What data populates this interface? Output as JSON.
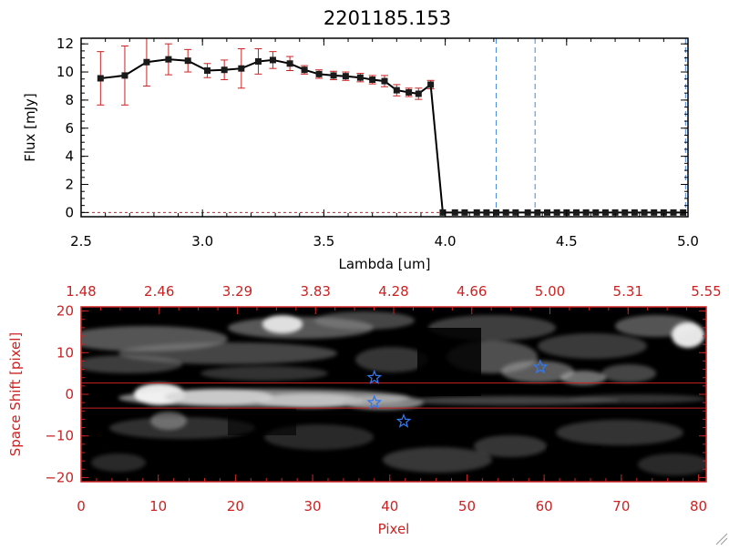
{
  "title": "2201185.153",
  "colors": {
    "data": "#000000",
    "errorbar": "#cc2222",
    "marker": "#1a1a1a",
    "vline": "#4488dd",
    "panel2_axis": "#cc2222",
    "trace_lines": "#cc2222",
    "star": "#3377ee"
  },
  "chart_data": [
    {
      "type": "line",
      "title": "2201185.153",
      "xlabel": "Lambda [um]",
      "ylabel": "Flux [mJy]",
      "xlim": [
        2.5,
        5.0
      ],
      "ylim": [
        -0.3,
        12.4
      ],
      "x_ticks": [
        2.5,
        3.0,
        3.5,
        4.0,
        4.5,
        5.0
      ],
      "x_tick_labels": [
        "2.5",
        "3.0",
        "3.5",
        "4.0",
        "4.5",
        "5.0"
      ],
      "y_ticks": [
        0,
        2,
        4,
        6,
        8,
        10,
        12
      ],
      "y_tick_labels": [
        "0",
        "2",
        "4",
        "6",
        "8",
        "10",
        "12"
      ],
      "series": [
        {
          "x": [
            2.58,
            2.68,
            2.77,
            2.86,
            2.94,
            3.02,
            3.09,
            3.16,
            3.23,
            3.29,
            3.36,
            3.42,
            3.48,
            3.54,
            3.59,
            3.65,
            3.7,
            3.75,
            3.8,
            3.85,
            3.89,
            3.94,
            3.99,
            4.04,
            4.08,
            4.13,
            4.17,
            4.21,
            4.25,
            4.29,
            4.34,
            4.38,
            4.42,
            4.46,
            4.5,
            4.54,
            4.58,
            4.62,
            4.66,
            4.7,
            4.74,
            4.78,
            4.82,
            4.86,
            4.9,
            4.94,
            4.98
          ],
          "y": [
            9.55,
            9.75,
            10.7,
            10.9,
            10.8,
            10.1,
            10.15,
            10.25,
            10.75,
            10.85,
            10.6,
            10.15,
            9.85,
            9.75,
            9.7,
            9.6,
            9.45,
            9.35,
            8.7,
            8.55,
            8.45,
            9.1,
            0,
            0,
            0,
            0,
            0,
            0,
            0,
            0,
            0,
            0,
            0,
            0,
            0,
            0,
            0,
            0,
            0,
            0,
            0,
            0,
            0,
            0,
            0,
            0,
            0
          ],
          "yerr": [
            1.9,
            2.1,
            1.7,
            1.1,
            0.8,
            0.5,
            0.7,
            1.4,
            0.9,
            0.6,
            0.5,
            0.3,
            0.3,
            0.3,
            0.3,
            0.3,
            0.3,
            0.4,
            0.4,
            0.3,
            0.4,
            0.3,
            0,
            0,
            0,
            0,
            0,
            0,
            0,
            0,
            0,
            0,
            0,
            0,
            0,
            0,
            0,
            0,
            0,
            0,
            0,
            0,
            0,
            0,
            0,
            0,
            0
          ]
        }
      ],
      "vertical_lines_x": [
        4.21,
        4.37,
        4.99
      ]
    },
    {
      "type": "heatmap",
      "xlabel": "Pixel",
      "ylabel": "Space Shift [pixel]",
      "xlim": [
        0,
        81
      ],
      "ylim": [
        -21,
        21
      ],
      "x_ticks": [
        0,
        10,
        20,
        30,
        40,
        50,
        60,
        70,
        80
      ],
      "x_tick_labels": [
        "0",
        "10",
        "20",
        "30",
        "40",
        "50",
        "60",
        "70",
        "80"
      ],
      "y_ticks": [
        -20,
        -10,
        0,
        10,
        20
      ],
      "y_tick_labels": [
        "−20",
        "−10",
        "0",
        "10",
        "20"
      ],
      "top_axis_tick_labels": [
        "1.48",
        "2.46",
        "3.29",
        "3.83",
        "4.28",
        "4.66",
        "5.00",
        "5.31",
        "5.55"
      ],
      "trace_lines_y": [
        2.7,
        -3.3
      ],
      "stars": [
        {
          "x": 38,
          "y": 4
        },
        {
          "x": 38,
          "y": -2
        },
        {
          "x": 41.8,
          "y": -6.5
        },
        {
          "x": 59.5,
          "y": 6.5
        }
      ]
    }
  ]
}
